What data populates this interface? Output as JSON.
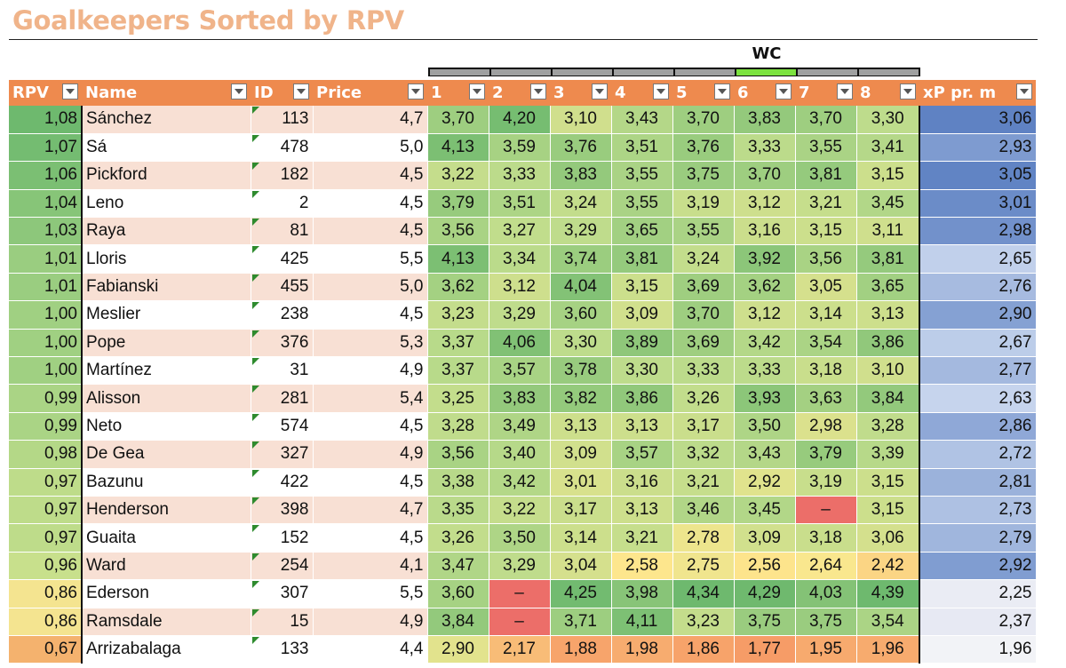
{
  "title": "Goalkeepers Sorted by RPV",
  "wc_label": "WC",
  "headers": {
    "rpv": "RPV",
    "name": "Name",
    "id": "ID",
    "price": "Price",
    "gw": [
      "1",
      "2",
      "3",
      "4",
      "5",
      "6",
      "7",
      "8"
    ],
    "xp": "xP pr. m"
  },
  "colors": {
    "header": "#EE8A4E",
    "title": "#F0B48A",
    "wc_bar": "#7CE23F",
    "gw_bar": "#9FA0A0"
  },
  "rows": [
    {
      "rpv": "1,08",
      "name": "Sánchez",
      "id": "113",
      "price": "4,7",
      "gw": [
        "3,70",
        "4,20",
        "3,10",
        "3,43",
        "3,70",
        "3,83",
        "3,70",
        "3,30"
      ],
      "xp": "3,06"
    },
    {
      "rpv": "1,07",
      "name": "Sá",
      "id": "478",
      "price": "5,0",
      "gw": [
        "4,13",
        "3,59",
        "3,76",
        "3,51",
        "3,76",
        "3,33",
        "3,55",
        "3,41"
      ],
      "xp": "2,93"
    },
    {
      "rpv": "1,06",
      "name": "Pickford",
      "id": "182",
      "price": "4,5",
      "gw": [
        "3,22",
        "3,33",
        "3,83",
        "3,55",
        "3,75",
        "3,70",
        "3,81",
        "3,15"
      ],
      "xp": "3,05"
    },
    {
      "rpv": "1,04",
      "name": "Leno",
      "id": "2",
      "price": "4,5",
      "gw": [
        "3,79",
        "3,51",
        "3,24",
        "3,55",
        "3,19",
        "3,12",
        "3,21",
        "3,45"
      ],
      "xp": "3,01"
    },
    {
      "rpv": "1,03",
      "name": "Raya",
      "id": "81",
      "price": "4,5",
      "gw": [
        "3,56",
        "3,27",
        "3,29",
        "3,65",
        "3,55",
        "3,16",
        "3,15",
        "3,11"
      ],
      "xp": "2,98"
    },
    {
      "rpv": "1,01",
      "name": "Lloris",
      "id": "425",
      "price": "5,5",
      "gw": [
        "4,13",
        "3,34",
        "3,74",
        "3,81",
        "3,24",
        "3,92",
        "3,56",
        "3,81"
      ],
      "xp": "2,65"
    },
    {
      "rpv": "1,01",
      "name": "Fabianski",
      "id": "455",
      "price": "5,0",
      "gw": [
        "3,62",
        "3,12",
        "4,04",
        "3,15",
        "3,69",
        "3,62",
        "3,05",
        "3,65"
      ],
      "xp": "2,76"
    },
    {
      "rpv": "1,00",
      "name": "Meslier",
      "id": "238",
      "price": "4,5",
      "gw": [
        "3,23",
        "3,29",
        "3,60",
        "3,09",
        "3,70",
        "3,12",
        "3,14",
        "3,13"
      ],
      "xp": "2,90"
    },
    {
      "rpv": "1,00",
      "name": "Pope",
      "id": "376",
      "price": "5,3",
      "gw": [
        "3,37",
        "4,06",
        "3,30",
        "3,89",
        "3,69",
        "3,42",
        "3,54",
        "3,86"
      ],
      "xp": "2,67"
    },
    {
      "rpv": "1,00",
      "name": "Martínez",
      "id": "31",
      "price": "4,9",
      "gw": [
        "3,37",
        "3,57",
        "3,78",
        "3,30",
        "3,33",
        "3,33",
        "3,18",
        "3,10"
      ],
      "xp": "2,77"
    },
    {
      "rpv": "0,99",
      "name": "Alisson",
      "id": "281",
      "price": "5,4",
      "gw": [
        "3,25",
        "3,83",
        "3,82",
        "3,86",
        "3,26",
        "3,93",
        "3,63",
        "3,84"
      ],
      "xp": "2,63"
    },
    {
      "rpv": "0,99",
      "name": "Neto",
      "id": "574",
      "price": "4,5",
      "gw": [
        "3,28",
        "3,49",
        "3,13",
        "3,13",
        "3,17",
        "3,50",
        "2,98",
        "3,28"
      ],
      "xp": "2,86"
    },
    {
      "rpv": "0,98",
      "name": "De Gea",
      "id": "327",
      "price": "4,9",
      "gw": [
        "3,56",
        "3,40",
        "3,09",
        "3,57",
        "3,32",
        "3,43",
        "3,79",
        "3,39"
      ],
      "xp": "2,72"
    },
    {
      "rpv": "0,97",
      "name": "Bazunu",
      "id": "422",
      "price": "4,5",
      "gw": [
        "3,38",
        "3,42",
        "3,01",
        "3,16",
        "3,21",
        "2,92",
        "3,19",
        "3,15"
      ],
      "xp": "2,81"
    },
    {
      "rpv": "0,97",
      "name": "Henderson",
      "id": "398",
      "price": "4,7",
      "gw": [
        "3,35",
        "3,22",
        "3,17",
        "3,13",
        "3,46",
        "3,45",
        "–",
        "3,15"
      ],
      "xp": "2,73"
    },
    {
      "rpv": "0,97",
      "name": "Guaita",
      "id": "152",
      "price": "4,5",
      "gw": [
        "3,26",
        "3,50",
        "3,14",
        "3,21",
        "2,78",
        "3,09",
        "3,18",
        "3,06"
      ],
      "xp": "2,79"
    },
    {
      "rpv": "0,96",
      "name": "Ward",
      "id": "254",
      "price": "4,1",
      "gw": [
        "3,47",
        "3,29",
        "3,04",
        "2,58",
        "2,75",
        "2,56",
        "2,64",
        "2,42"
      ],
      "xp": "2,92"
    },
    {
      "rpv": "0,86",
      "name": "Ederson",
      "id": "307",
      "price": "5,5",
      "gw": [
        "3,60",
        "–",
        "4,25",
        "3,98",
        "4,34",
        "4,29",
        "4,03",
        "4,39"
      ],
      "xp": "2,25"
    },
    {
      "rpv": "0,86",
      "name": "Ramsdale",
      "id": "15",
      "price": "4,9",
      "gw": [
        "3,84",
        "–",
        "3,71",
        "4,11",
        "3,23",
        "3,75",
        "3,75",
        "3,54"
      ],
      "xp": "2,37"
    },
    {
      "rpv": "0,67",
      "name": "Arrizabalaga",
      "id": "133",
      "price": "4,4",
      "gw": [
        "2,90",
        "2,17",
        "1,88",
        "1,98",
        "1,86",
        "1,77",
        "1,95",
        "1,96"
      ],
      "xp": "1,96"
    }
  ]
}
